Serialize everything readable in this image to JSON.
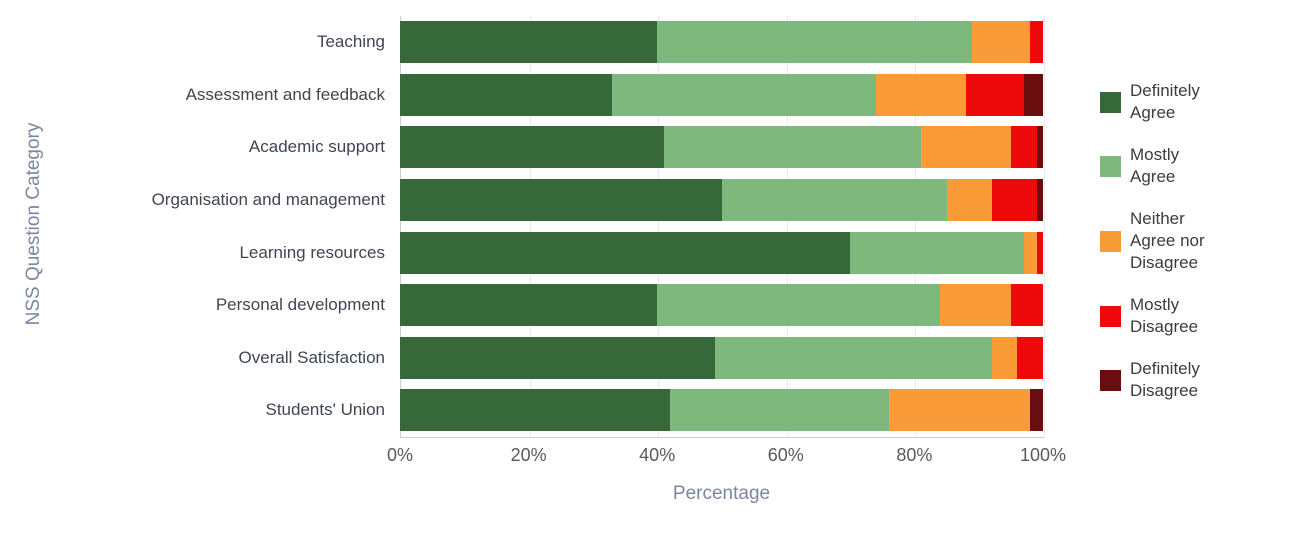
{
  "chart_data": {
    "type": "bar",
    "orientation": "horizontal",
    "stacked": true,
    "title": "",
    "xlabel": "Percentage",
    "ylabel": "NSS Question Category",
    "xlim": [
      0,
      100
    ],
    "x_tick_labels": [
      "0%",
      "20%",
      "40%",
      "60%",
      "80%",
      "100%"
    ],
    "grid": true,
    "legend_position": "right",
    "categories": [
      "Teaching",
      "Assessment and feedback",
      "Academic support",
      "Organisation and management",
      "Learning resources",
      "Personal development",
      "Overall Satisfaction",
      "Students' Union"
    ],
    "series": [
      {
        "name": "Definitely Agree",
        "legend_lines": [
          "Definitely",
          "Agree"
        ],
        "color": "#376839",
        "values": [
          40,
          33,
          41,
          50,
          70,
          40,
          49,
          42
        ]
      },
      {
        "name": "Mostly Agree",
        "legend_lines": [
          "Mostly",
          "Agree"
        ],
        "color": "#7fb87c",
        "values": [
          49,
          41,
          40,
          35,
          27,
          44,
          43,
          34
        ]
      },
      {
        "name": "Neither Agree nor Disagree",
        "legend_lines": [
          "Neither",
          "Agree nor",
          "Disagree"
        ],
        "color": "#f99c38",
        "values": [
          9,
          14,
          14,
          7,
          2,
          11,
          4,
          22
        ]
      },
      {
        "name": "Mostly Disagree",
        "legend_lines": [
          "Mostly",
          "Disagree"
        ],
        "color": "#ee0a0a",
        "values": [
          2,
          9,
          4,
          7,
          1,
          5,
          4,
          0
        ]
      },
      {
        "name": "Definitely Disagree",
        "legend_lines": [
          "Definitely",
          "Disagree"
        ],
        "color": "#680e0e",
        "values": [
          0,
          3,
          1,
          1,
          0,
          0,
          0,
          2
        ]
      }
    ]
  }
}
